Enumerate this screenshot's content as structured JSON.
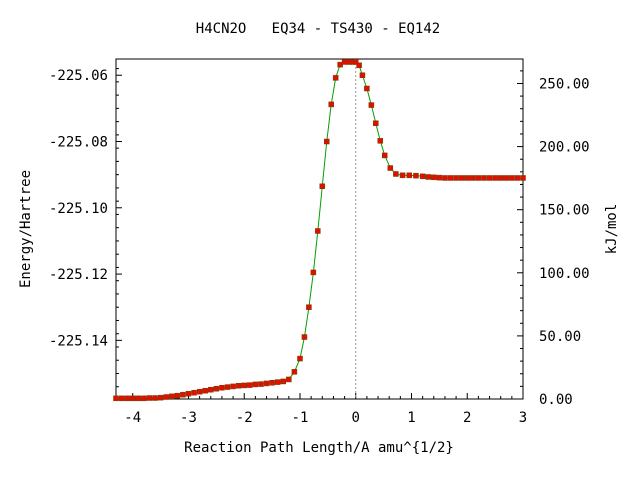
{
  "chart_data": {
    "type": "line",
    "title": "H4CN2O   EQ34 - TS430 - EQ142",
    "xlabel": "Reaction Path Length/A amu^{1/2}",
    "ylabel": "Energy/Hartree",
    "y2label": "kJ/mol",
    "xlim": [
      -4.3,
      3.0
    ],
    "ylim": [
      -225.1577,
      -225.0551
    ],
    "y2lim": [
      0.0,
      269.4
    ],
    "x_ticks": [
      -4,
      -3,
      -2,
      -1,
      0,
      1,
      2,
      3
    ],
    "x_tick_labels": [
      "-4",
      "-3",
      "-2",
      "-1",
      "0",
      "1",
      "2",
      "3"
    ],
    "y_ticks": [
      -225.06,
      -225.08,
      -225.1,
      -225.12,
      -225.14
    ],
    "y_tick_labels": [
      "-225.06",
      "-225.08",
      "-225.10",
      "-225.12",
      "-225.14"
    ],
    "y2_ticks": [
      0,
      50,
      100,
      150,
      200,
      250
    ],
    "y2_tick_labels": [
      "0.00",
      "50.00",
      "100.00",
      "150.00",
      "200.00",
      "250.00"
    ],
    "ts_marker_x": 0.0,
    "grid": false,
    "colors": {
      "line": "#00a000",
      "marker": "#dd1100",
      "ts_line": "#999999"
    },
    "series": [
      {
        "x": [
          -4.3,
          -4.2,
          -4.1,
          -4.0,
          -3.9,
          -3.8,
          -3.7,
          -3.6,
          -3.5,
          -3.4,
          -3.3,
          -3.2,
          -3.1,
          -3.0,
          -2.9,
          -2.8,
          -2.7,
          -2.6,
          -2.5,
          -2.4,
          -2.3,
          -2.2,
          -2.1,
          -2.0,
          -1.9,
          -1.8,
          -1.7,
          -1.6,
          -1.5,
          -1.4,
          -1.3,
          -1.2,
          -1.1,
          -1.0,
          -0.92,
          -0.84,
          -0.76,
          -0.68,
          -0.6,
          -0.52,
          -0.44,
          -0.36,
          -0.28,
          -0.2,
          -0.12,
          -0.06,
          0.0,
          0.06,
          0.12,
          0.2,
          0.28,
          0.36,
          0.44,
          0.52,
          0.62,
          0.72,
          0.84,
          0.96,
          1.08,
          1.2,
          1.3,
          1.4,
          1.5,
          1.6,
          1.7,
          1.8,
          1.9,
          2.0,
          2.1,
          2.2,
          2.3,
          2.4,
          2.5,
          2.6,
          2.7,
          2.8,
          2.9,
          3.0
        ],
        "y": [
          -225.1575,
          -225.1575,
          -225.1575,
          -225.1575,
          -225.1575,
          -225.1575,
          -225.1574,
          -225.1574,
          -225.1573,
          -225.1571,
          -225.1569,
          -225.1567,
          -225.1564,
          -225.1561,
          -225.1558,
          -225.1555,
          -225.1552,
          -225.1549,
          -225.1546,
          -225.1543,
          -225.1541,
          -225.1539,
          -225.1537,
          -225.1536,
          -225.1535,
          -225.1533,
          -225.1532,
          -225.153,
          -225.1528,
          -225.1526,
          -225.1524,
          -225.1518,
          -225.1495,
          -225.1455,
          -225.139,
          -225.13,
          -225.1195,
          -225.107,
          -225.0935,
          -225.08,
          -225.0688,
          -225.0608,
          -225.0568,
          -225.056,
          -225.056,
          -225.056,
          -225.056,
          -225.057,
          -225.06,
          -225.064,
          -225.069,
          -225.0745,
          -225.0798,
          -225.0842,
          -225.088,
          -225.0898,
          -225.0902,
          -225.0902,
          -225.0903,
          -225.0905,
          -225.0907,
          -225.0908,
          -225.0909,
          -225.091,
          -225.091,
          -225.091,
          -225.091,
          -225.091,
          -225.091,
          -225.091,
          -225.091,
          -225.091,
          -225.091,
          -225.091,
          -225.091,
          -225.091,
          -225.091,
          -225.091
        ]
      }
    ]
  }
}
